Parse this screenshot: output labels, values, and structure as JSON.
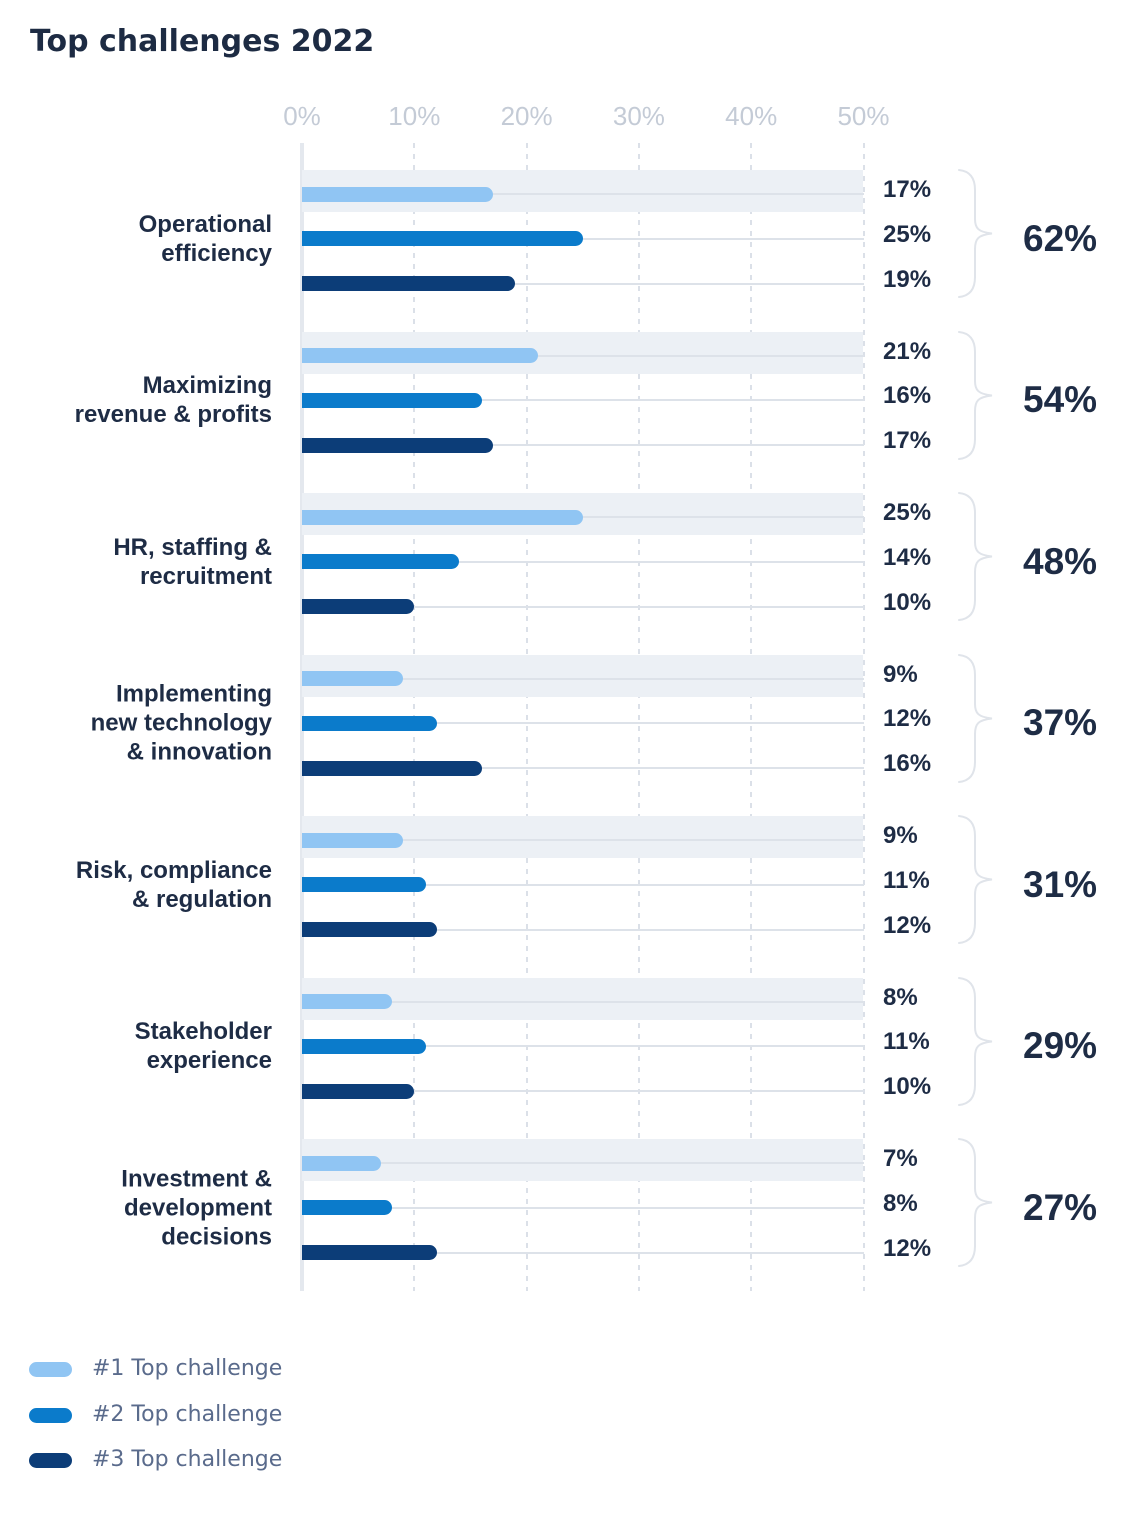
{
  "title": "Top challenges 2022",
  "chart_data": {
    "type": "bar",
    "orientation": "horizontal",
    "title": "Top challenges 2022",
    "x_axis": {
      "min": 0,
      "max": 50,
      "unit": "%",
      "tick_labels": [
        "0%",
        "10%",
        "20%",
        "30%",
        "40%",
        "50%"
      ],
      "gridlines": "dashed"
    },
    "series": [
      {
        "name": "#1 Top challenge",
        "color": "#90c5f3"
      },
      {
        "name": "#2 Top challenge",
        "color": "#0b7bcb"
      },
      {
        "name": "#3 Top challenge",
        "color": "#0c3d78"
      }
    ],
    "groups": [
      {
        "label": "Operational efficiency",
        "label_lines": [
          "Operational",
          "efficiency"
        ],
        "values": [
          17,
          25,
          19
        ],
        "value_labels": [
          "17%",
          "25%",
          "19%"
        ],
        "total": 62,
        "total_label": "62%"
      },
      {
        "label": "Maximizing revenue & profits",
        "label_lines": [
          "Maximizing",
          "revenue & profits"
        ],
        "values": [
          21,
          16,
          17
        ],
        "value_labels": [
          "21%",
          "16%",
          "17%"
        ],
        "total": 54,
        "total_label": "54%"
      },
      {
        "label": "HR, staffing & recruitment",
        "label_lines": [
          "HR, staffing &",
          "recruitment"
        ],
        "values": [
          25,
          14,
          10
        ],
        "value_labels": [
          "25%",
          "14%",
          "10%"
        ],
        "total": 48,
        "total_label": "48%"
      },
      {
        "label": "Implementing new technology & innovation",
        "label_lines": [
          "Implementing",
          "new technology",
          "& innovation"
        ],
        "values": [
          9,
          12,
          16
        ],
        "value_labels": [
          "9%",
          "12%",
          "16%"
        ],
        "total": 37,
        "total_label": "37%"
      },
      {
        "label": "Risk, compliance & regulation",
        "label_lines": [
          "Risk, compliance",
          "& regulation"
        ],
        "values": [
          9,
          11,
          12
        ],
        "value_labels": [
          "9%",
          "11%",
          "12%"
        ],
        "total": 31,
        "total_label": "31%"
      },
      {
        "label": "Stakeholder experience",
        "label_lines": [
          "Stakeholder",
          "experience"
        ],
        "values": [
          8,
          11,
          10
        ],
        "value_labels": [
          "8%",
          "11%",
          "10%"
        ],
        "total": 29,
        "total_label": "29%"
      },
      {
        "label": "Investment & development decisions",
        "label_lines": [
          "Investment &",
          "development",
          "decisions"
        ],
        "values": [
          7,
          8,
          12
        ],
        "value_labels": [
          "7%",
          "8%",
          "12%"
        ],
        "total": 27,
        "total_label": "27%"
      }
    ],
    "legend_position": "bottom-left"
  }
}
